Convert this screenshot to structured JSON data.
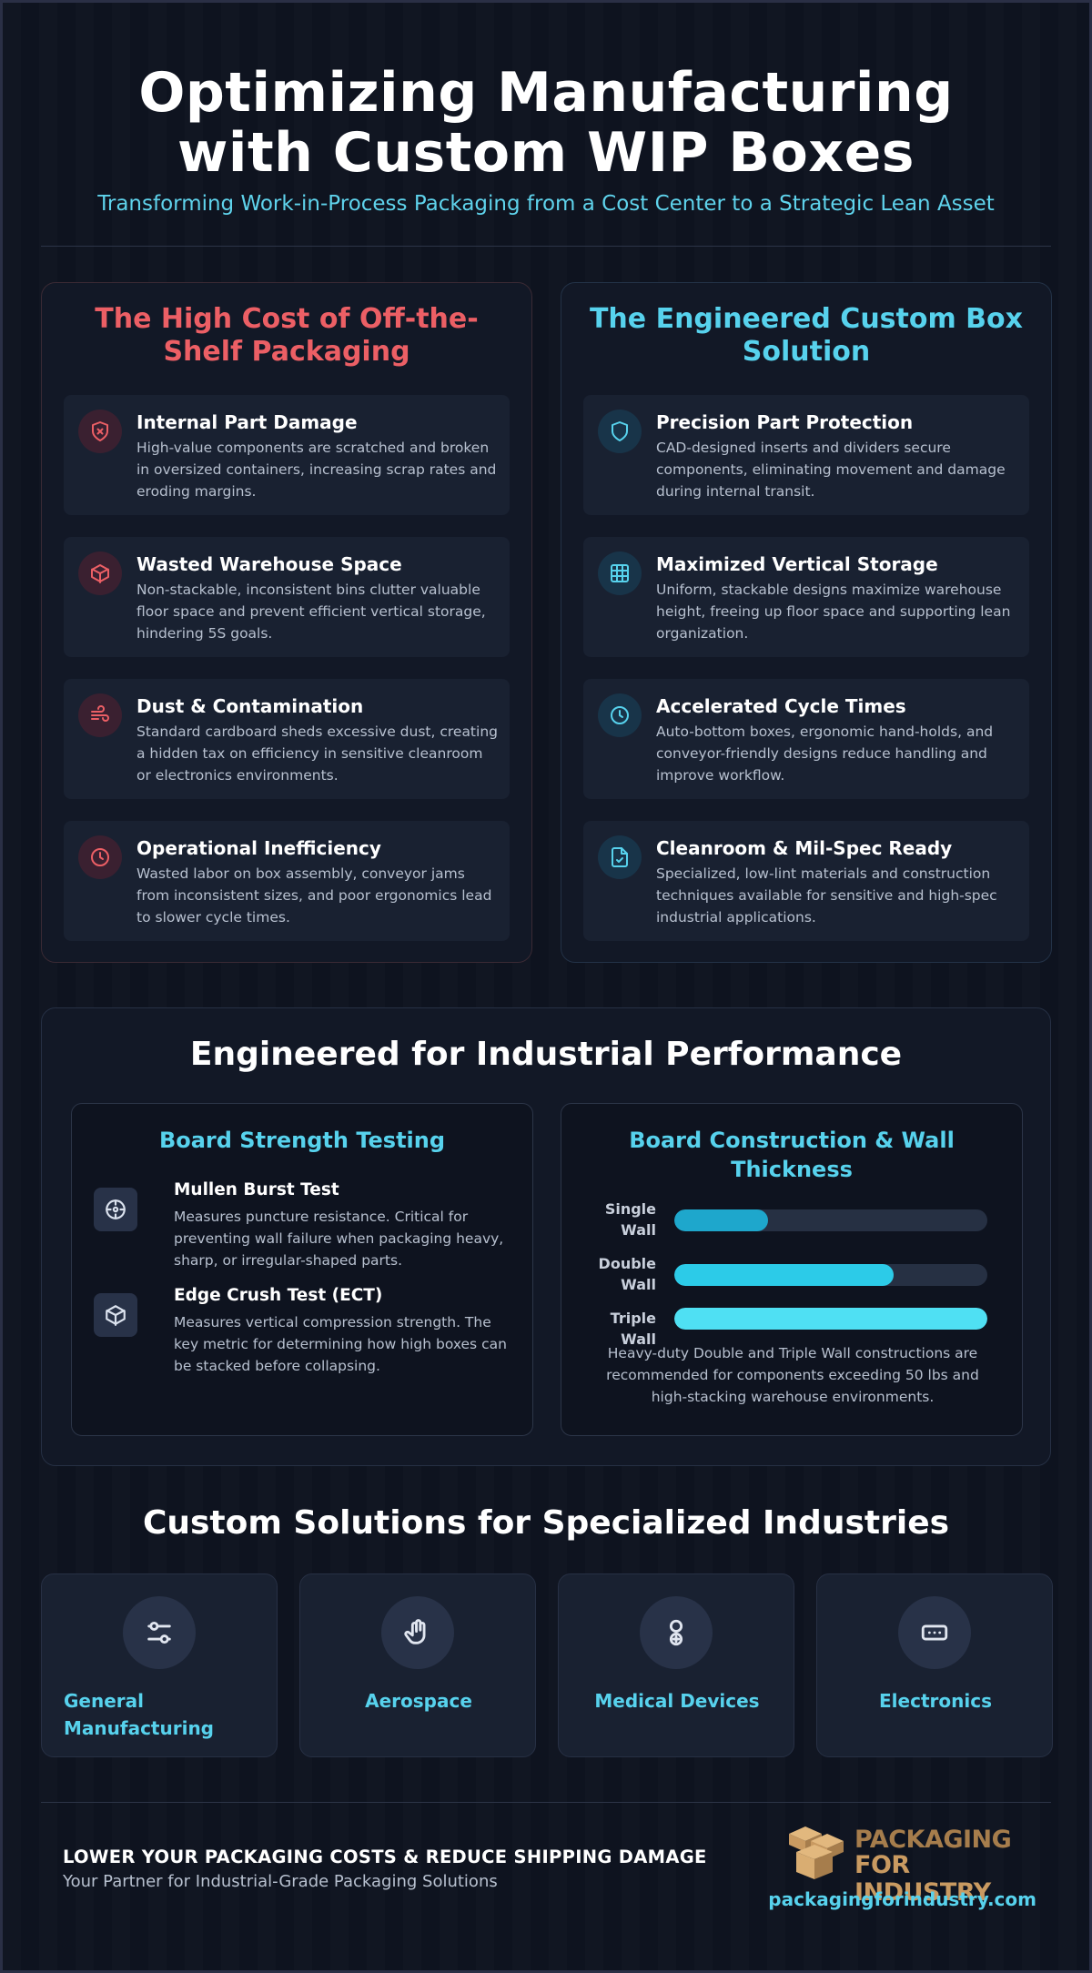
{
  "header": {
    "title_line1": "Optimizing Manufacturing",
    "title_line2": "with Custom WIP Boxes",
    "subtitle": "Transforming Work-in-Process Packaging from a Cost Center to a Strategic Lean Asset"
  },
  "problems": {
    "title": "The High Cost of Off-the-Shelf Packaging",
    "accent": "#ec5f65",
    "items": [
      {
        "icon": "shield-x-icon",
        "title": "Internal Part Damage",
        "desc": "High-value components are scratched and broken in oversized containers, increasing scrap rates and eroding margins."
      },
      {
        "icon": "box-icon",
        "title": "Wasted Warehouse Space",
        "desc": "Non-stackable, inconsistent bins clutter valuable floor space and prevent efficient vertical storage, hindering 5S goals."
      },
      {
        "icon": "wind-icon",
        "title": "Dust & Contamination",
        "desc": "Standard cardboard sheds excessive dust, creating a hidden tax on efficiency in sensitive cleanroom or electronics environments."
      },
      {
        "icon": "clock-icon",
        "title": "Operational Inefficiency",
        "desc": "Wasted labor on box assembly, conveyor jams from inconsistent sizes, and poor ergonomics lead to slower cycle times."
      }
    ]
  },
  "solutions": {
    "title": "The Engineered Custom Box Solution",
    "accent": "#57d2ed",
    "items": [
      {
        "icon": "shield-icon",
        "title": "Precision Part Protection",
        "desc": "CAD-designed inserts and dividers secure components, eliminating movement and damage during internal transit."
      },
      {
        "icon": "grid-icon",
        "title": "Maximized Vertical Storage",
        "desc": "Uniform, stackable designs maximize warehouse height, freeing up floor space and supporting lean organization."
      },
      {
        "icon": "clock-icon",
        "title": "Accelerated Cycle Times",
        "desc": "Auto-bottom boxes, ergonomic hand-holds, and conveyor-friendly designs reduce handling and improve workflow."
      },
      {
        "icon": "file-check-icon",
        "title": "Cleanroom & Mil-Spec Ready",
        "desc": "Specialized, low-lint materials and construction techniques available for sensitive and high-spec industrial applications."
      }
    ]
  },
  "performance": {
    "title": "Engineered for Industrial Performance",
    "strength": {
      "title": "Board Strength Testing",
      "tests": [
        {
          "icon": "crosshair-icon",
          "title": "Mullen Burst Test",
          "desc": "Measures puncture resistance. Critical for preventing wall failure when packaging heavy, sharp, or irregular-shaped parts."
        },
        {
          "icon": "cube-icon",
          "title": "Edge Crush Test (ECT)",
          "desc": "Measures vertical compression strength. The key metric for determining how high boxes can be stacked before collapsing."
        }
      ]
    },
    "construction": {
      "title": "Board Construction & Wall Thickness",
      "bars": [
        {
          "label_line1": "Single",
          "label_line2": "Wall",
          "level": 0.3,
          "color": "#1ea7cc"
        },
        {
          "label_line1": "Double",
          "label_line2": "Wall",
          "level": 0.7,
          "color": "#2ccbe8"
        },
        {
          "label_line1": "Triple Wall",
          "label_line2": "",
          "level": 1.0,
          "color": "#4fe0f3"
        }
      ],
      "note": "Heavy-duty Double and Triple Wall constructions are recommended for components exceeding 50 lbs and high-stacking warehouse environments."
    }
  },
  "industries": {
    "title": "Custom Solutions for Specialized Industries",
    "items": [
      {
        "icon": "sliders-icon",
        "label": "General Manufacturing"
      },
      {
        "icon": "hand-icon",
        "label": "Aerospace"
      },
      {
        "icon": "medical-icon",
        "label": "Medical Devices"
      },
      {
        "icon": "chip-icon",
        "label": "Electronics"
      }
    ]
  },
  "footer": {
    "cta": "LOWER YOUR PACKAGING COSTS & REDUCE SHIPPING DAMAGE",
    "tagline": "Your Partner for Industrial-Grade Packaging Solutions",
    "logo_line1": "PACKAGING",
    "logo_line2": "FOR INDUSTRY",
    "website": "packagingforindustry.com"
  }
}
